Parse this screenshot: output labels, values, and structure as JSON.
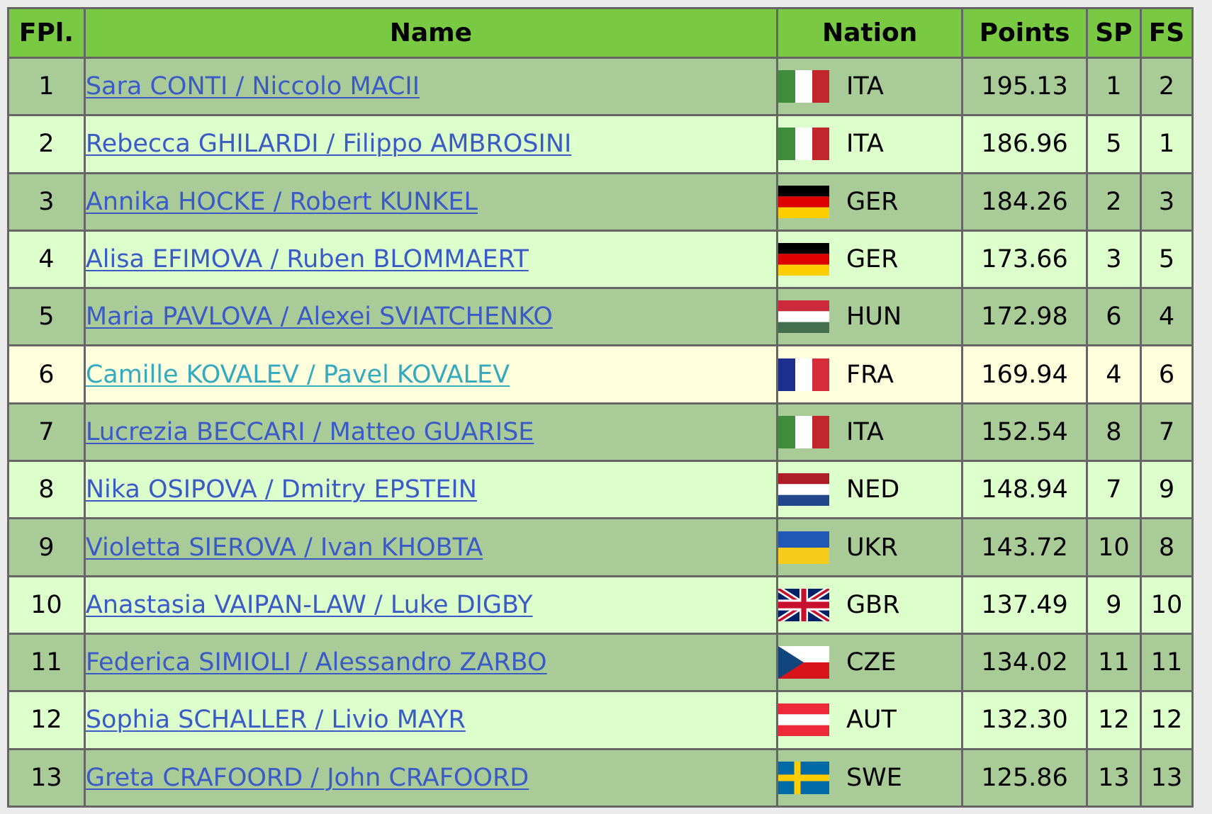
{
  "table": {
    "headers": {
      "rank": "FPl.",
      "name": "Name",
      "nation": "Nation",
      "points": "Points",
      "sp": "SP",
      "fs": "FS"
    },
    "rows": [
      {
        "rank": "1",
        "name": "Sara CONTI / Niccolo MACII",
        "flag": "flag-italy-icon",
        "nation": "ITA",
        "points": "195.13",
        "sp": "1",
        "fs": "2"
      },
      {
        "rank": "2",
        "name": "Rebecca GHILARDI / Filippo AMBROSINI",
        "flag": "flag-italy-icon",
        "nation": "ITA",
        "points": "186.96",
        "sp": "5",
        "fs": "1"
      },
      {
        "rank": "3",
        "name": "Annika HOCKE / Robert KUNKEL",
        "flag": "flag-germany-icon",
        "nation": "GER",
        "points": "184.26",
        "sp": "2",
        "fs": "3"
      },
      {
        "rank": "4",
        "name": "Alisa EFIMOVA / Ruben BLOMMAERT",
        "flag": "flag-germany-icon",
        "nation": "GER",
        "points": "173.66",
        "sp": "3",
        "fs": "5"
      },
      {
        "rank": "5",
        "name": "Maria PAVLOVA / Alexei SVIATCHENKO",
        "flag": "flag-hungary-icon",
        "nation": "HUN",
        "points": "172.98",
        "sp": "6",
        "fs": "4"
      },
      {
        "rank": "6",
        "name": "Camille KOVALEV / Pavel KOVALEV",
        "flag": "flag-france-icon",
        "nation": "FRA",
        "points": "169.94",
        "sp": "4",
        "fs": "6"
      },
      {
        "rank": "7",
        "name": "Lucrezia BECCARI / Matteo GUARISE",
        "flag": "flag-italy-icon",
        "nation": "ITA",
        "points": "152.54",
        "sp": "8",
        "fs": "7"
      },
      {
        "rank": "8",
        "name": "Nika OSIPOVA / Dmitry EPSTEIN",
        "flag": "flag-netherlands-icon",
        "nation": "NED",
        "points": "148.94",
        "sp": "7",
        "fs": "9"
      },
      {
        "rank": "9",
        "name": "Violetta SIEROVA / Ivan KHOBTA",
        "flag": "flag-ukraine-icon",
        "nation": "UKR",
        "points": "143.72",
        "sp": "10",
        "fs": "8"
      },
      {
        "rank": "10",
        "name": "Anastasia VAIPAN-LAW / Luke DIGBY",
        "flag": "flag-uk-icon",
        "nation": "GBR",
        "points": "137.49",
        "sp": "9",
        "fs": "10"
      },
      {
        "rank": "11",
        "name": "Federica SIMIOLI / Alessandro ZARBO",
        "flag": "flag-czech-icon",
        "nation": "CZE",
        "points": "134.02",
        "sp": "11",
        "fs": "11"
      },
      {
        "rank": "12",
        "name": "Sophia SCHALLER / Livio MAYR",
        "flag": "flag-austria-icon",
        "nation": "AUT",
        "points": "132.30",
        "sp": "12",
        "fs": "12"
      },
      {
        "rank": "13",
        "name": "Greta CRAFOORD / John CRAFOORD",
        "flag": "flag-sweden-icon",
        "nation": "SWE",
        "points": "125.86",
        "sp": "13",
        "fs": "13"
      }
    ]
  },
  "colors": {
    "header_bg": "#7ac943",
    "row_odd_bg": "#a9cb98",
    "row_even_bg": "#ddffcc",
    "row_highlight_bg": "#ffffdd",
    "link": "#3a5bc7",
    "link_highlight": "#35a9c0",
    "border": "#666666"
  },
  "highlighted_row": 5
}
